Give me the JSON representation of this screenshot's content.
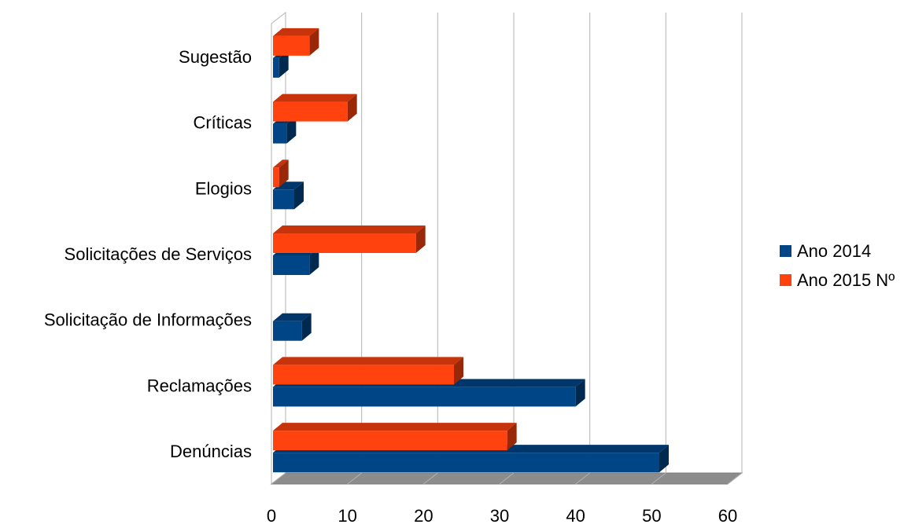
{
  "chart_data": {
    "type": "bar",
    "orientation": "horizontal",
    "style": "3d",
    "categories": [
      "Denúncias",
      "Reclamações",
      "Solicitação de Informações",
      "Solicitações de Serviços",
      "Elogios",
      "Críticas",
      "Sugestão"
    ],
    "series": [
      {
        "name": "Ano 2014",
        "color": "#004586",
        "values": [
          51,
          40,
          4,
          5,
          3,
          2,
          1
        ]
      },
      {
        "name": "Ano 2015 Nº",
        "color": "#ff420e",
        "values": [
          31,
          24,
          0,
          19,
          1,
          10,
          5
        ]
      }
    ],
    "xlim": [
      0,
      60
    ],
    "x_ticks": [
      "0",
      "10",
      "20",
      "30",
      "40",
      "50",
      "60"
    ],
    "grid": true,
    "legend_position": "right",
    "title": "",
    "xlabel": "",
    "ylabel": ""
  }
}
